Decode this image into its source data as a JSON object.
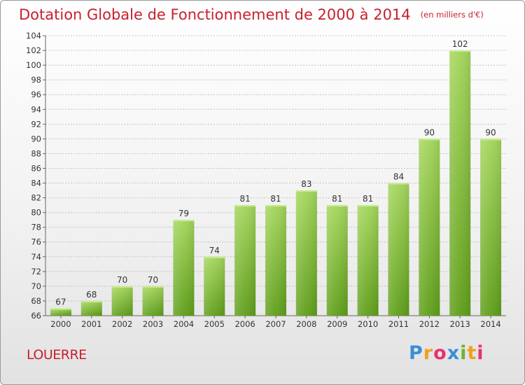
{
  "title": "Dotation Globale de Fonctionnement de 2000 à 2014",
  "unit": "(en milliers d'€)",
  "commune": "LOUERRE",
  "logo": {
    "letters": [
      "P",
      "r",
      "o",
      "x",
      "i",
      "t",
      "i"
    ],
    "colors": [
      "#3a8fd6",
      "#f0a020",
      "#e83070",
      "#3a8fd6",
      "#6ab530",
      "#f0a020",
      "#e83070"
    ]
  },
  "colors": {
    "bar_light": "#a4d65c",
    "bar_dark": "#5f9e1a",
    "title": "#c8202e",
    "grid": "#c4c4c4",
    "text": "#333333"
  },
  "chart_data": {
    "type": "bar",
    "categories": [
      "2000",
      "2001",
      "2002",
      "2003",
      "2004",
      "2005",
      "2006",
      "2007",
      "2008",
      "2009",
      "2010",
      "2011",
      "2012",
      "2013",
      "2014"
    ],
    "values": [
      67,
      68,
      70,
      70,
      79,
      74,
      81,
      81,
      83,
      81,
      81,
      84,
      90,
      102,
      90
    ],
    "data_labels": [
      "67",
      "68",
      "70",
      "70",
      "79",
      "74",
      "81",
      "81",
      "83",
      "81",
      "81",
      "84",
      "90",
      "102",
      "90"
    ],
    "ylim": [
      66,
      104
    ],
    "yticks": [
      66,
      68,
      70,
      72,
      74,
      76,
      78,
      80,
      82,
      84,
      86,
      88,
      90,
      92,
      94,
      96,
      98,
      100,
      102,
      104
    ],
    "ytick_labels": [
      "66",
      "68",
      "70",
      "72",
      "74",
      "76",
      "78",
      "80",
      "82",
      "84",
      "86",
      "88",
      "90",
      "92",
      "94",
      "96",
      "98",
      "100",
      "102",
      "104"
    ],
    "grid": true,
    "legend": false
  }
}
